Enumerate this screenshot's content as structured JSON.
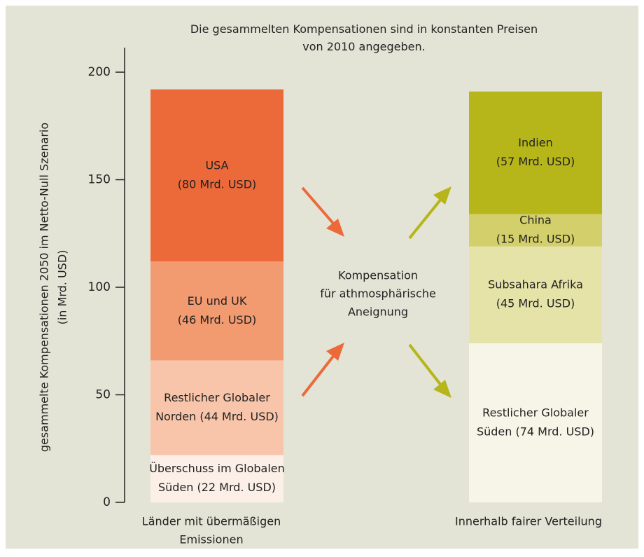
{
  "chart_data": {
    "type": "stacked_bar",
    "title": [
      "Die gesammelten Kompensationen sind in konstanten Preisen",
      "von 2010 angegeben."
    ],
    "y_label": [
      "gesammelte Kompensationen 2050 im Netto-Null Szenario",
      "(in Mrd. USD)"
    ],
    "categories": [
      [
        "Länder mit übermäßigen",
        "Emissionen"
      ],
      [
        "Innerhalb fairer Verteilung"
      ]
    ],
    "ylim": [
      0,
      200
    ],
    "yticks": [
      0,
      50,
      100,
      150,
      200
    ],
    "grid": false,
    "annotations": [
      [
        "Kompensation",
        "für athmosphärische",
        "Aneignung"
      ]
    ],
    "series": [
      {
        "color": "#fbefe7",
        "values": [
          22,
          null
        ],
        "value_labels": [
          [
            "Überschuss im Globalen",
            "Süden (22 Mrd. USD)"
          ],
          null
        ]
      },
      {
        "color": "#f8c5aa",
        "values": [
          44,
          null
        ],
        "value_labels": [
          [
            "Restlicher Globaler",
            "Norden (44 Mrd. USD)"
          ],
          null
        ]
      },
      {
        "color": "#f29a70",
        "values": [
          46,
          null
        ],
        "value_labels": [
          [
            "EU und UK",
            "(46 Mrd. USD)"
          ],
          null
        ]
      },
      {
        "color": "#ec6a3a",
        "values": [
          80,
          null
        ],
        "value_labels": [
          [
            "USA",
            "(80 Mrd. USD)"
          ],
          null
        ]
      },
      {
        "color": "#f6f5e8",
        "values": [
          null,
          74
        ],
        "value_labels": [
          null,
          [
            "Restlicher Globaler",
            "Süden (74 Mrd. USD)"
          ]
        ]
      },
      {
        "color": "#e5e3a8",
        "values": [
          null,
          45
        ],
        "value_labels": [
          null,
          [
            "Subsahara Afrika",
            "(45 Mrd. USD)"
          ]
        ]
      },
      {
        "color": "#d3cf6a",
        "values": [
          null,
          15
        ],
        "value_labels": [
          null,
          [
            "China",
            "(15 Mrd. USD)"
          ]
        ]
      },
      {
        "color": "#b6b61a",
        "values": [
          null,
          57
        ],
        "value_labels": [
          null,
          [
            "Indien",
            "(57 Mrd. USD)"
          ]
        ]
      }
    ]
  }
}
